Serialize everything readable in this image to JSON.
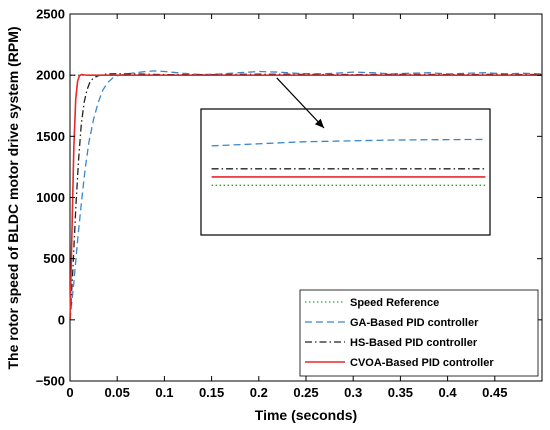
{
  "chart_data": {
    "type": "line",
    "title": "",
    "xlabel": "Time (seconds)",
    "ylabel": "The rotor speed of BLDC motor drive system (RPM)",
    "xlim": [
      0,
      0.5
    ],
    "ylim": [
      -500,
      2500
    ],
    "xticks": [
      0,
      0.05,
      0.1,
      0.15,
      0.2,
      0.25,
      0.3,
      0.35,
      0.4,
      0.45
    ],
    "xtick_labels": [
      "0",
      "0.05",
      "0.1",
      "0.15",
      "0.2",
      "0.25",
      "0.3",
      "0.35",
      "0.4",
      "0.45"
    ],
    "yticks": [
      -500,
      0,
      500,
      1000,
      1500,
      2000,
      2500
    ],
    "ytick_labels": [
      "−500",
      "0",
      "500",
      "1000",
      "1500",
      "2000",
      "2500"
    ],
    "grid": false,
    "legend_position": "bottom-right",
    "series": [
      {
        "name": "Speed Reference",
        "color": "#2ca02c",
        "dash": "dotted",
        "x": [
          0,
          0.5
        ],
        "y": [
          2000,
          2000
        ]
      },
      {
        "name": "GA-Based PID controller",
        "color": "#3a87c8",
        "dash": "dashed",
        "x": [
          0,
          0.004,
          0.008,
          0.012,
          0.016,
          0.02,
          0.025,
          0.03,
          0.035,
          0.04,
          0.045,
          0.05,
          0.06,
          0.07,
          0.08,
          0.09,
          0.1,
          0.12,
          0.14,
          0.16,
          0.18,
          0.2,
          0.22,
          0.24,
          0.26,
          0.28,
          0.3,
          0.32,
          0.34,
          0.36,
          0.38,
          0.4,
          0.42,
          0.44,
          0.46,
          0.48,
          0.5
        ],
        "y": [
          0,
          300,
          650,
          950,
          1230,
          1450,
          1640,
          1780,
          1880,
          1940,
          1975,
          1995,
          2010,
          2020,
          2030,
          2035,
          2030,
          2015,
          2005,
          2010,
          2020,
          2030,
          2025,
          2015,
          2010,
          2015,
          2025,
          2020,
          2010,
          2015,
          2020,
          2010,
          2015,
          2020,
          2010,
          2015,
          2010
        ]
      },
      {
        "name": "HS-Based PID controller",
        "color": "#222222",
        "dash": "dashdot",
        "x": [
          0,
          0.003,
          0.006,
          0.009,
          0.012,
          0.015,
          0.018,
          0.021,
          0.024,
          0.027,
          0.03,
          0.035,
          0.04,
          0.05,
          0.06,
          0.08,
          0.1,
          0.15,
          0.2,
          0.25,
          0.3,
          0.35,
          0.4,
          0.45,
          0.5
        ],
        "y": [
          0,
          400,
          900,
          1300,
          1600,
          1780,
          1880,
          1940,
          1970,
          1985,
          1995,
          2005,
          2010,
          2012,
          2010,
          2008,
          2005,
          2005,
          2008,
          2006,
          2005,
          2006,
          2005,
          2006,
          2005
        ]
      },
      {
        "name": "CVOA-Based PID controller",
        "color": "#e8292b",
        "dash": "solid",
        "x": [
          0,
          0.002,
          0.004,
          0.006,
          0.008,
          0.01,
          0.012,
          0.014,
          0.016,
          0.02,
          0.03,
          0.05,
          0.1,
          0.2,
          0.3,
          0.4,
          0.5
        ],
        "y": [
          0,
          700,
          1400,
          1800,
          1950,
          1995,
          2005,
          2003,
          2001,
          2000,
          2000,
          2000,
          2000,
          2000,
          2000,
          2000,
          2000
        ]
      }
    ],
    "inset": {
      "x_range": [
        0.15,
        0.44
      ],
      "points_to": [
        0.2,
        2010
      ],
      "lines": [
        {
          "series": "GA-Based PID controller",
          "y": [
            1422,
            1455,
            1470,
            1475
          ]
        },
        {
          "series": "HS-Based PID controller",
          "y": [
            1235,
            1235,
            1235,
            1235
          ]
        },
        {
          "series": "CVOA-Based PID controller",
          "y": [
            1168,
            1168,
            1168,
            1168
          ]
        },
        {
          "series": "Speed Reference",
          "y": [
            1100,
            1100,
            1100,
            1100
          ]
        }
      ]
    }
  }
}
